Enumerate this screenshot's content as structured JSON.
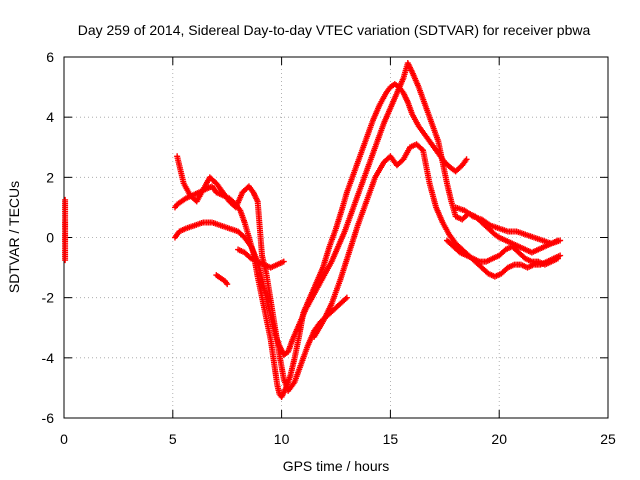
{
  "chart_data": {
    "type": "scatter",
    "title": "Day 259 of 2014, Sidereal Day-to-day VTEC variation (SDTVAR) for receiver pbwa",
    "xlabel": "GPS time / hours",
    "ylabel": "SDTVAR / TECUs",
    "xlim": [
      0,
      25
    ],
    "ylim": [
      -6,
      6
    ],
    "xticks": [
      "0",
      "5",
      "10",
      "15",
      "20",
      "25"
    ],
    "yticks": [
      "-6",
      "-4",
      "-2",
      "0",
      "2",
      "4",
      "6"
    ],
    "grid": true,
    "marker": "+",
    "color": "#ff0000",
    "series": [
      {
        "x": [
          0.05,
          0.05,
          0.05,
          0.05,
          0.05
        ],
        "y": [
          1.25,
          1.0,
          0.55,
          0.25,
          -0.75
        ]
      },
      {
        "x": [
          5.1,
          5.2,
          5.4,
          5.6,
          5.9,
          6.2,
          6.5,
          6.8,
          7.0,
          7.3,
          7.6,
          7.9,
          8.1,
          8.3,
          8.5,
          8.7,
          8.9,
          9.1,
          9.3,
          9.5,
          9.6,
          9.7,
          9.8,
          9.9,
          10.0,
          10.2,
          10.4,
          10.6,
          10.8,
          11.0,
          11.3,
          11.6,
          11.9,
          12.2,
          12.5,
          12.8,
          13.0,
          13.3,
          13.6,
          13.9,
          14.2,
          14.5,
          14.8,
          15.0,
          15.2,
          15.4,
          15.6,
          15.8,
          16.0,
          16.3,
          16.6,
          16.9,
          17.2,
          17.5,
          17.8,
          18.0,
          18.3,
          18.5
        ],
        "y": [
          1.0,
          1.1,
          1.2,
          1.3,
          1.4,
          1.5,
          1.6,
          1.7,
          1.5,
          1.4,
          1.3,
          1.1,
          0.9,
          0.5,
          0.0,
          -0.5,
          -1.3,
          -2.0,
          -2.7,
          -3.4,
          -3.9,
          -4.4,
          -4.9,
          -5.2,
          -5.3,
          -5.0,
          -4.6,
          -4.0,
          -3.3,
          -2.5,
          -2.0,
          -1.5,
          -1.0,
          -0.3,
          0.3,
          1.0,
          1.5,
          2.1,
          2.7,
          3.3,
          3.9,
          4.4,
          4.8,
          5.0,
          5.1,
          5.0,
          4.8,
          4.5,
          4.1,
          3.7,
          3.4,
          3.1,
          2.8,
          2.5,
          2.3,
          2.2,
          2.4,
          2.6
        ]
      },
      {
        "x": [
          5.1,
          5.3,
          5.6,
          6.0,
          6.4,
          6.8,
          7.2,
          7.6,
          8.0,
          8.3,
          8.6,
          8.9,
          9.1,
          9.3,
          9.5,
          9.7,
          9.9,
          10.1,
          10.3,
          10.5,
          10.8,
          11.1,
          11.4,
          11.7,
          12.0,
          12.3,
          12.6,
          12.9,
          13.2,
          13.5,
          13.8,
          14.1,
          14.4,
          14.7,
          15.0,
          15.3,
          15.6,
          15.8,
          16.0,
          16.3,
          16.6,
          16.9,
          17.2,
          17.4,
          17.6,
          17.8,
          18.0,
          18.3,
          18.6,
          18.9,
          19.2,
          19.5,
          19.8,
          20.0,
          20.3,
          20.6,
          20.9,
          21.2,
          21.5,
          21.8,
          22.1,
          22.4,
          22.7
        ],
        "y": [
          0.0,
          0.2,
          0.3,
          0.4,
          0.5,
          0.5,
          0.4,
          0.3,
          0.2,
          0.0,
          -0.3,
          -0.8,
          -1.4,
          -2.0,
          -2.6,
          -3.2,
          -3.6,
          -3.9,
          -3.8,
          -3.4,
          -2.9,
          -2.4,
          -2.0,
          -1.6,
          -1.2,
          -0.8,
          -0.3,
          0.2,
          0.8,
          1.4,
          2.0,
          2.6,
          3.2,
          3.8,
          4.3,
          4.8,
          5.3,
          5.8,
          5.5,
          5.0,
          4.4,
          3.8,
          3.2,
          2.5,
          1.8,
          1.2,
          0.7,
          0.6,
          0.8,
          0.7,
          0.5,
          0.3,
          0.1,
          0.0,
          -0.1,
          -0.2,
          -0.3,
          -0.4,
          -0.5,
          -0.4,
          -0.3,
          -0.2,
          -0.1
        ]
      },
      {
        "x": [
          5.2,
          5.5,
          5.8,
          6.1,
          6.4,
          6.7,
          7.0,
          7.3,
          7.6,
          7.9,
          8.2,
          8.5,
          8.7,
          8.9,
          9.1,
          9.3,
          9.5,
          9.7,
          9.9,
          10.1,
          10.3,
          10.6,
          10.9,
          11.2,
          11.5,
          11.8,
          12.1,
          12.4,
          12.7,
          13.0
        ],
        "y": [
          2.7,
          1.8,
          1.4,
          1.2,
          1.6,
          2.0,
          1.8,
          1.5,
          1.2,
          1.0,
          1.5,
          1.7,
          1.5,
          1.2,
          -0.6,
          -1.2,
          -2.1,
          -3.0,
          -3.9,
          -4.7,
          -5.1,
          -4.8,
          -4.2,
          -3.6,
          -3.1,
          -2.8,
          -2.6,
          -2.4,
          -2.2,
          -2.0
        ]
      },
      {
        "x": [
          8.0,
          8.3,
          8.6,
          8.9,
          9.2,
          9.5,
          9.8,
          10.1
        ],
        "y": [
          -0.4,
          -0.5,
          -0.7,
          -0.8,
          -0.9,
          -1.0,
          -0.9,
          -0.8
        ]
      },
      {
        "x": [
          7.0,
          7.2,
          7.4,
          7.5
        ],
        "y": [
          -1.25,
          -1.35,
          -1.45,
          -1.55
        ]
      },
      {
        "x": [
          11.5,
          11.9,
          12.3,
          12.7,
          13.1,
          13.5,
          13.9,
          14.3,
          14.7,
          15.0,
          15.3,
          15.6,
          15.9,
          16.2,
          16.5,
          16.8,
          17.1,
          17.4,
          17.7,
          18.0,
          18.3,
          18.6,
          18.9,
          19.2,
          19.5,
          19.8,
          20.1,
          20.4,
          20.7,
          21.0,
          21.3,
          21.6,
          21.9,
          22.2,
          22.5,
          22.8
        ],
        "y": [
          -3.3,
          -2.8,
          -2.2,
          -1.4,
          -0.5,
          0.4,
          1.2,
          2.0,
          2.5,
          2.7,
          2.4,
          2.6,
          3.0,
          3.1,
          2.9,
          1.8,
          1.0,
          0.5,
          0.1,
          -0.2,
          -0.4,
          -0.6,
          -0.8,
          -1.0,
          -1.2,
          -1.3,
          -1.2,
          -1.0,
          -0.9,
          -0.9,
          -1.0,
          -0.9,
          -0.9,
          -0.8,
          -0.7,
          -0.6
        ]
      },
      {
        "x": [
          18.0,
          18.4,
          18.8,
          19.2,
          19.6,
          20.0,
          20.4,
          20.8,
          21.2,
          21.6,
          22.0,
          22.4,
          22.8
        ],
        "y": [
          1.0,
          0.9,
          0.7,
          0.6,
          0.4,
          0.3,
          0.2,
          0.2,
          0.1,
          0.0,
          -0.1,
          -0.2,
          -0.1
        ]
      },
      {
        "x": [
          17.6,
          17.9,
          18.2,
          18.5,
          18.8,
          19.1,
          19.4,
          19.7,
          20.0,
          20.3,
          20.6,
          20.9,
          21.2,
          21.5,
          21.8,
          22.1,
          22.4,
          22.7
        ],
        "y": [
          -0.1,
          -0.3,
          -0.5,
          -0.6,
          -0.7,
          -0.8,
          -0.8,
          -0.7,
          -0.6,
          -0.4,
          -0.3,
          -0.5,
          -0.7,
          -0.8,
          -0.8,
          -0.9,
          -0.8,
          -0.7
        ]
      }
    ]
  }
}
